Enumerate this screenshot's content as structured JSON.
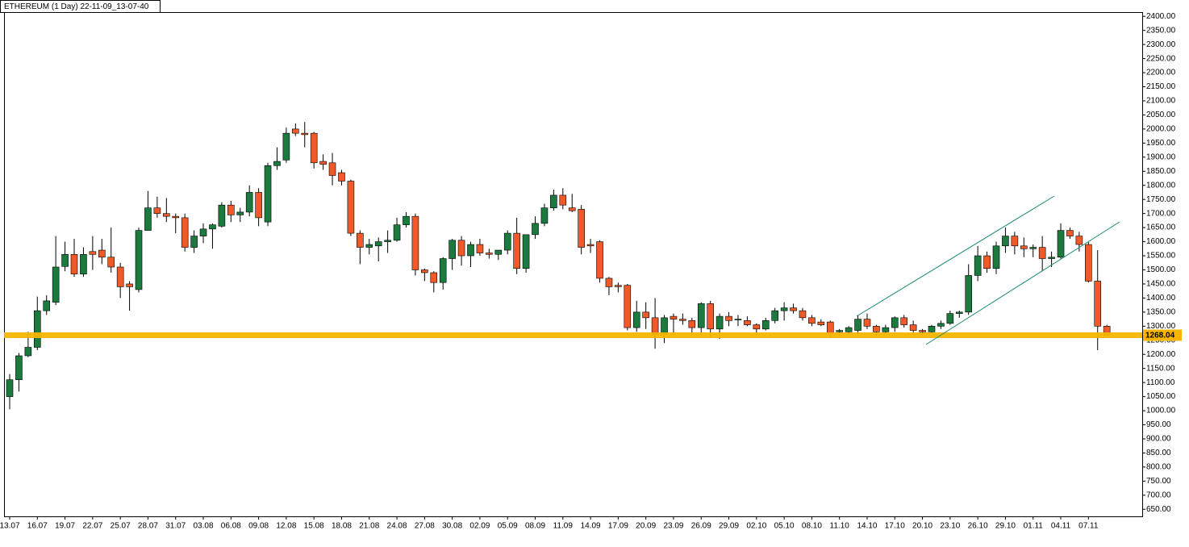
{
  "chart_data": {
    "type": "candlestick",
    "title": "ETHEREUM (1 Day) 22-11-09_13-07-40",
    "categories": [
      "13.07",
      null,
      null,
      "16.07",
      null,
      null,
      "19.07",
      null,
      null,
      "22.07",
      null,
      null,
      "25.07",
      null,
      null,
      "28.07",
      null,
      null,
      "31.07",
      null,
      null,
      "03.08",
      null,
      null,
      "06.08",
      null,
      null,
      "09.08",
      null,
      null,
      "12.08",
      null,
      null,
      "15.08",
      null,
      null,
      "18.08",
      null,
      null,
      "21.08",
      null,
      null,
      "24.08",
      null,
      null,
      "27.08",
      null,
      null,
      "30.08",
      null,
      null,
      "02.09",
      null,
      null,
      "05.09",
      null,
      null,
      "08.09",
      null,
      null,
      "11.09",
      null,
      null,
      "14.09",
      null,
      null,
      "17.09",
      null,
      null,
      "20.09",
      null,
      null,
      "23.09",
      null,
      null,
      "26.09",
      null,
      null,
      "29.09",
      null,
      null,
      "02.10",
      null,
      null,
      "05.10",
      null,
      null,
      "08.10",
      null,
      null,
      "11.10",
      null,
      null,
      "14.10",
      null,
      null,
      "17.10",
      null,
      null,
      "20.10",
      null,
      null,
      "23.10",
      null,
      null,
      "26.10",
      null,
      null,
      "29.10",
      null,
      null,
      "01.11",
      null,
      null,
      "04.11",
      null,
      null,
      "07.11",
      null,
      null
    ],
    "open": [
      1050,
      1110,
      1195,
      1225,
      1355,
      1385,
      1512,
      1555,
      1485,
      1565,
      1570,
      1545,
      1510,
      1450,
      1430,
      1640,
      1720,
      1700,
      1690,
      1685,
      1580,
      1620,
      1645,
      1655,
      1730,
      1695,
      1705,
      1775,
      1670,
      1870,
      1890,
      2000,
      1985,
      1985,
      1885,
      1880,
      1845,
      1815,
      1630,
      1580,
      1585,
      1600,
      1605,
      1660,
      1690,
      1500,
      1490,
      1455,
      1540,
      1605,
      1550,
      1590,
      1560,
      1555,
      1570,
      1630,
      1505,
      1625,
      1665,
      1720,
      1765,
      1720,
      1715,
      1590,
      1600,
      1470,
      1445,
      1445,
      1295,
      1350,
      1330,
      1270,
      1335,
      1325,
      1320,
      1295,
      1380,
      1290,
      1335,
      1325,
      1320,
      1305,
      1290,
      1320,
      1355,
      1365,
      1355,
      1330,
      1315,
      1315,
      1280,
      1280,
      1285,
      1325,
      1300,
      1280,
      1295,
      1330,
      1305,
      1285,
      1280,
      1300,
      1310,
      1345,
      1350,
      1480,
      1550,
      1505,
      1585,
      1620,
      1585,
      1575,
      1580,
      1540,
      1545,
      1640,
      1620,
      1590,
      1460,
      1300
    ],
    "high": [
      1130,
      1205,
      1280,
      1405,
      1410,
      1620,
      1600,
      1610,
      1580,
      1620,
      1610,
      1650,
      1525,
      1460,
      1650,
      1780,
      1760,
      1755,
      1700,
      1700,
      1640,
      1665,
      1665,
      1740,
      1745,
      1720,
      1800,
      1790,
      1880,
      1935,
      2005,
      2020,
      2025,
      1990,
      1910,
      1915,
      1855,
      1820,
      1640,
      1610,
      1615,
      1640,
      1685,
      1705,
      1700,
      1505,
      1495,
      1545,
      1610,
      1620,
      1600,
      1610,
      1575,
      1570,
      1640,
      1685,
      1620,
      1690,
      1735,
      1785,
      1790,
      1770,
      1730,
      1610,
      1605,
      1475,
      1455,
      1450,
      1390,
      1385,
      1400,
      1340,
      1345,
      1345,
      1330,
      1385,
      1390,
      1345,
      1350,
      1340,
      1335,
      1310,
      1330,
      1365,
      1385,
      1380,
      1365,
      1340,
      1325,
      1320,
      1290,
      1300,
      1340,
      1345,
      1305,
      1305,
      1335,
      1340,
      1320,
      1290,
      1305,
      1320,
      1355,
      1355,
      1520,
      1585,
      1565,
      1600,
      1650,
      1635,
      1615,
      1590,
      1620,
      1565,
      1665,
      1650,
      1635,
      1600,
      1570,
      1305
    ],
    "low": [
      1005,
      1068,
      1190,
      1215,
      1340,
      1375,
      1495,
      1475,
      1475,
      1500,
      1520,
      1490,
      1400,
      1355,
      1420,
      1640,
      1685,
      1670,
      1630,
      1565,
      1560,
      1595,
      1575,
      1650,
      1670,
      1670,
      1690,
      1655,
      1655,
      1855,
      1880,
      1975,
      1935,
      1860,
      1855,
      1800,
      1800,
      1620,
      1520,
      1555,
      1530,
      1560,
      1600,
      1650,
      1480,
      1460,
      1420,
      1430,
      1500,
      1515,
      1510,
      1550,
      1540,
      1535,
      1555,
      1485,
      1490,
      1610,
      1655,
      1710,
      1715,
      1705,
      1555,
      1560,
      1455,
      1410,
      1420,
      1285,
      1280,
      1290,
      1220,
      1240,
      1270,
      1305,
      1270,
      1270,
      1260,
      1255,
      1300,
      1300,
      1300,
      1270,
      1285,
      1310,
      1320,
      1345,
      1320,
      1300,
      1300,
      1260,
      1265,
      1270,
      1270,
      1290,
      1265,
      1270,
      1280,
      1295,
      1270,
      1265,
      1275,
      1290,
      1305,
      1330,
      1340,
      1460,
      1490,
      1485,
      1560,
      1555,
      1545,
      1545,
      1495,
      1510,
      1540,
      1610,
      1565,
      1455,
      1215,
      1265
    ],
    "close": [
      1110,
      1195,
      1225,
      1355,
      1390,
      1510,
      1555,
      1485,
      1555,
      1555,
      1545,
      1510,
      1440,
      1440,
      1640,
      1720,
      1700,
      1690,
      1685,
      1580,
      1620,
      1645,
      1660,
      1730,
      1695,
      1705,
      1775,
      1685,
      1870,
      1885,
      1985,
      1985,
      1980,
      1880,
      1875,
      1835,
      1815,
      1630,
      1580,
      1590,
      1600,
      1605,
      1660,
      1690,
      1500,
      1490,
      1455,
      1540,
      1605,
      1550,
      1590,
      1560,
      1555,
      1570,
      1630,
      1505,
      1625,
      1665,
      1720,
      1765,
      1730,
      1710,
      1580,
      1585,
      1470,
      1440,
      1440,
      1295,
      1350,
      1330,
      1270,
      1330,
      1325,
      1320,
      1295,
      1380,
      1290,
      1335,
      1320,
      1325,
      1305,
      1290,
      1320,
      1355,
      1365,
      1355,
      1330,
      1310,
      1305,
      1275,
      1285,
      1295,
      1325,
      1300,
      1280,
      1295,
      1330,
      1305,
      1285,
      1280,
      1300,
      1310,
      1345,
      1350,
      1480,
      1550,
      1505,
      1585,
      1620,
      1585,
      1575,
      1580,
      1540,
      1545,
      1640,
      1620,
      1590,
      1460,
      1300,
      1268.04
    ],
    "up_color": "#1b7a3e",
    "down_color": "#f05a28",
    "level_color": "#f7b500",
    "ylim": [
      625,
      2415
    ],
    "yticks": [
      {
        "value": 650,
        "label": "650.00"
      },
      {
        "value": 700,
        "label": "700.00"
      },
      {
        "value": 750,
        "label": "750.00"
      },
      {
        "value": 800,
        "label": "800.00"
      },
      {
        "value": 850,
        "label": "850.00"
      },
      {
        "value": 900,
        "label": "900.00"
      },
      {
        "value": 950,
        "label": "950.00"
      },
      {
        "value": 1000,
        "label": "1000.00"
      },
      {
        "value": 1050,
        "label": "1050.00"
      },
      {
        "value": 1100,
        "label": "1100.00"
      },
      {
        "value": 1150,
        "label": "1150.00"
      },
      {
        "value": 1200,
        "label": "1200.00"
      },
      {
        "value": 1250,
        "label": "1250.00"
      },
      {
        "value": 1300,
        "label": "1300.00"
      },
      {
        "value": 1350,
        "label": "1350.00"
      },
      {
        "value": 1400,
        "label": "1400.00"
      },
      {
        "value": 1450,
        "label": "1450.00"
      },
      {
        "value": 1500,
        "label": "1500.00"
      },
      {
        "value": 1550,
        "label": "1550.00"
      },
      {
        "value": 1600,
        "label": "1600.00"
      },
      {
        "value": 1650,
        "label": "1650.00"
      },
      {
        "value": 1700,
        "label": "1700.00"
      },
      {
        "value": 1750,
        "label": "1750.00"
      },
      {
        "value": 1800,
        "label": "1800.00"
      },
      {
        "value": 1850,
        "label": "1850.00"
      },
      {
        "value": 1900,
        "label": "1900.00"
      },
      {
        "value": 1950,
        "label": "1950.00"
      },
      {
        "value": 2000,
        "label": "2000.00"
      },
      {
        "value": 2050,
        "label": "2050.00"
      },
      {
        "value": 2100,
        "label": "2100.00"
      },
      {
        "value": 2150,
        "label": "2150.00"
      },
      {
        "value": 2200,
        "label": "2200.00"
      },
      {
        "value": 2250,
        "label": "2250.00"
      },
      {
        "value": 2300,
        "label": "2300.00"
      },
      {
        "value": 2350,
        "label": "2350.00"
      },
      {
        "value": 2400,
        "label": "2400.00"
      }
    ],
    "grid": false
  }
}
